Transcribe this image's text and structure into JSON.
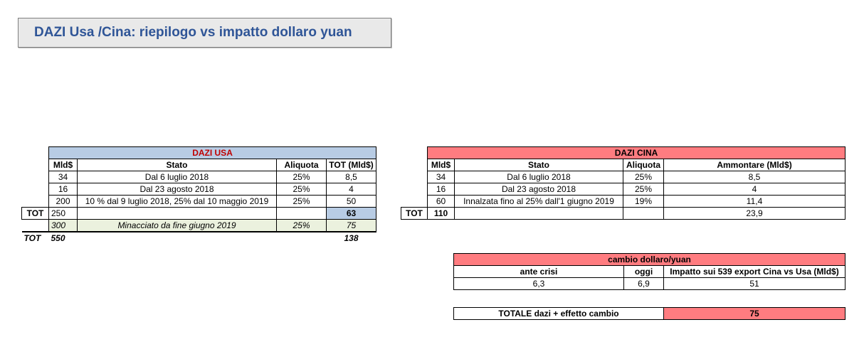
{
  "title": "DAZI Usa /Cina: riepilogo vs impatto dollaro yuan",
  "usa": {
    "header": "DAZI USA",
    "columns": [
      "Mld$",
      "Stato",
      "Aliquota",
      "TOT (Mld$)"
    ],
    "rows": [
      {
        "mld": "34",
        "stato": "Dal 6 luglio 2018",
        "aliquota": "25%",
        "tot": "8,5"
      },
      {
        "mld": "16",
        "stato": "Dal 23 agosto 2018",
        "aliquota": "25%",
        "tot": "4"
      },
      {
        "mld": "200",
        "stato": "10 % dal 9 luglio 2018, 25% dal 10 maggio 2019",
        "aliquota": "25%",
        "tot": "50"
      }
    ],
    "total": {
      "label": "TOT",
      "mld": "250",
      "tot": "63"
    },
    "threat": {
      "mld": "300",
      "stato": "Minacciato da fine giugno 2019",
      "aliquota": "25%",
      "tot": "75"
    },
    "grand_total": {
      "label": "TOT",
      "mld": "550",
      "tot": "138"
    }
  },
  "cina": {
    "header": "DAZI CINA",
    "columns": [
      "Mld$",
      "Stato",
      "Aliquota",
      "Ammontare (Mld$)"
    ],
    "rows": [
      {
        "mld": "34",
        "stato": "Dal 6 luglio 2018",
        "aliquota": "25%",
        "tot": "8,5"
      },
      {
        "mld": "16",
        "stato": "Dal 23 agosto 2018",
        "aliquota": "25%",
        "tot": "4"
      },
      {
        "mld": "60",
        "stato": "Innalzata fino al 25% dall'1 giugno 2019",
        "aliquota": "19%",
        "tot": "11,4"
      }
    ],
    "total": {
      "label": "TOT",
      "mld": "110",
      "tot": "23,9"
    }
  },
  "cambio": {
    "header": "cambio dollaro/yuan",
    "columns": [
      "ante crisi",
      "oggi",
      "Impatto sui 539 export Cina vs Usa (Mld$)"
    ],
    "values": [
      "6,3",
      "6,9",
      "51"
    ]
  },
  "totale": {
    "label": "TOTALE dazi + effetto cambio",
    "value": "75"
  }
}
